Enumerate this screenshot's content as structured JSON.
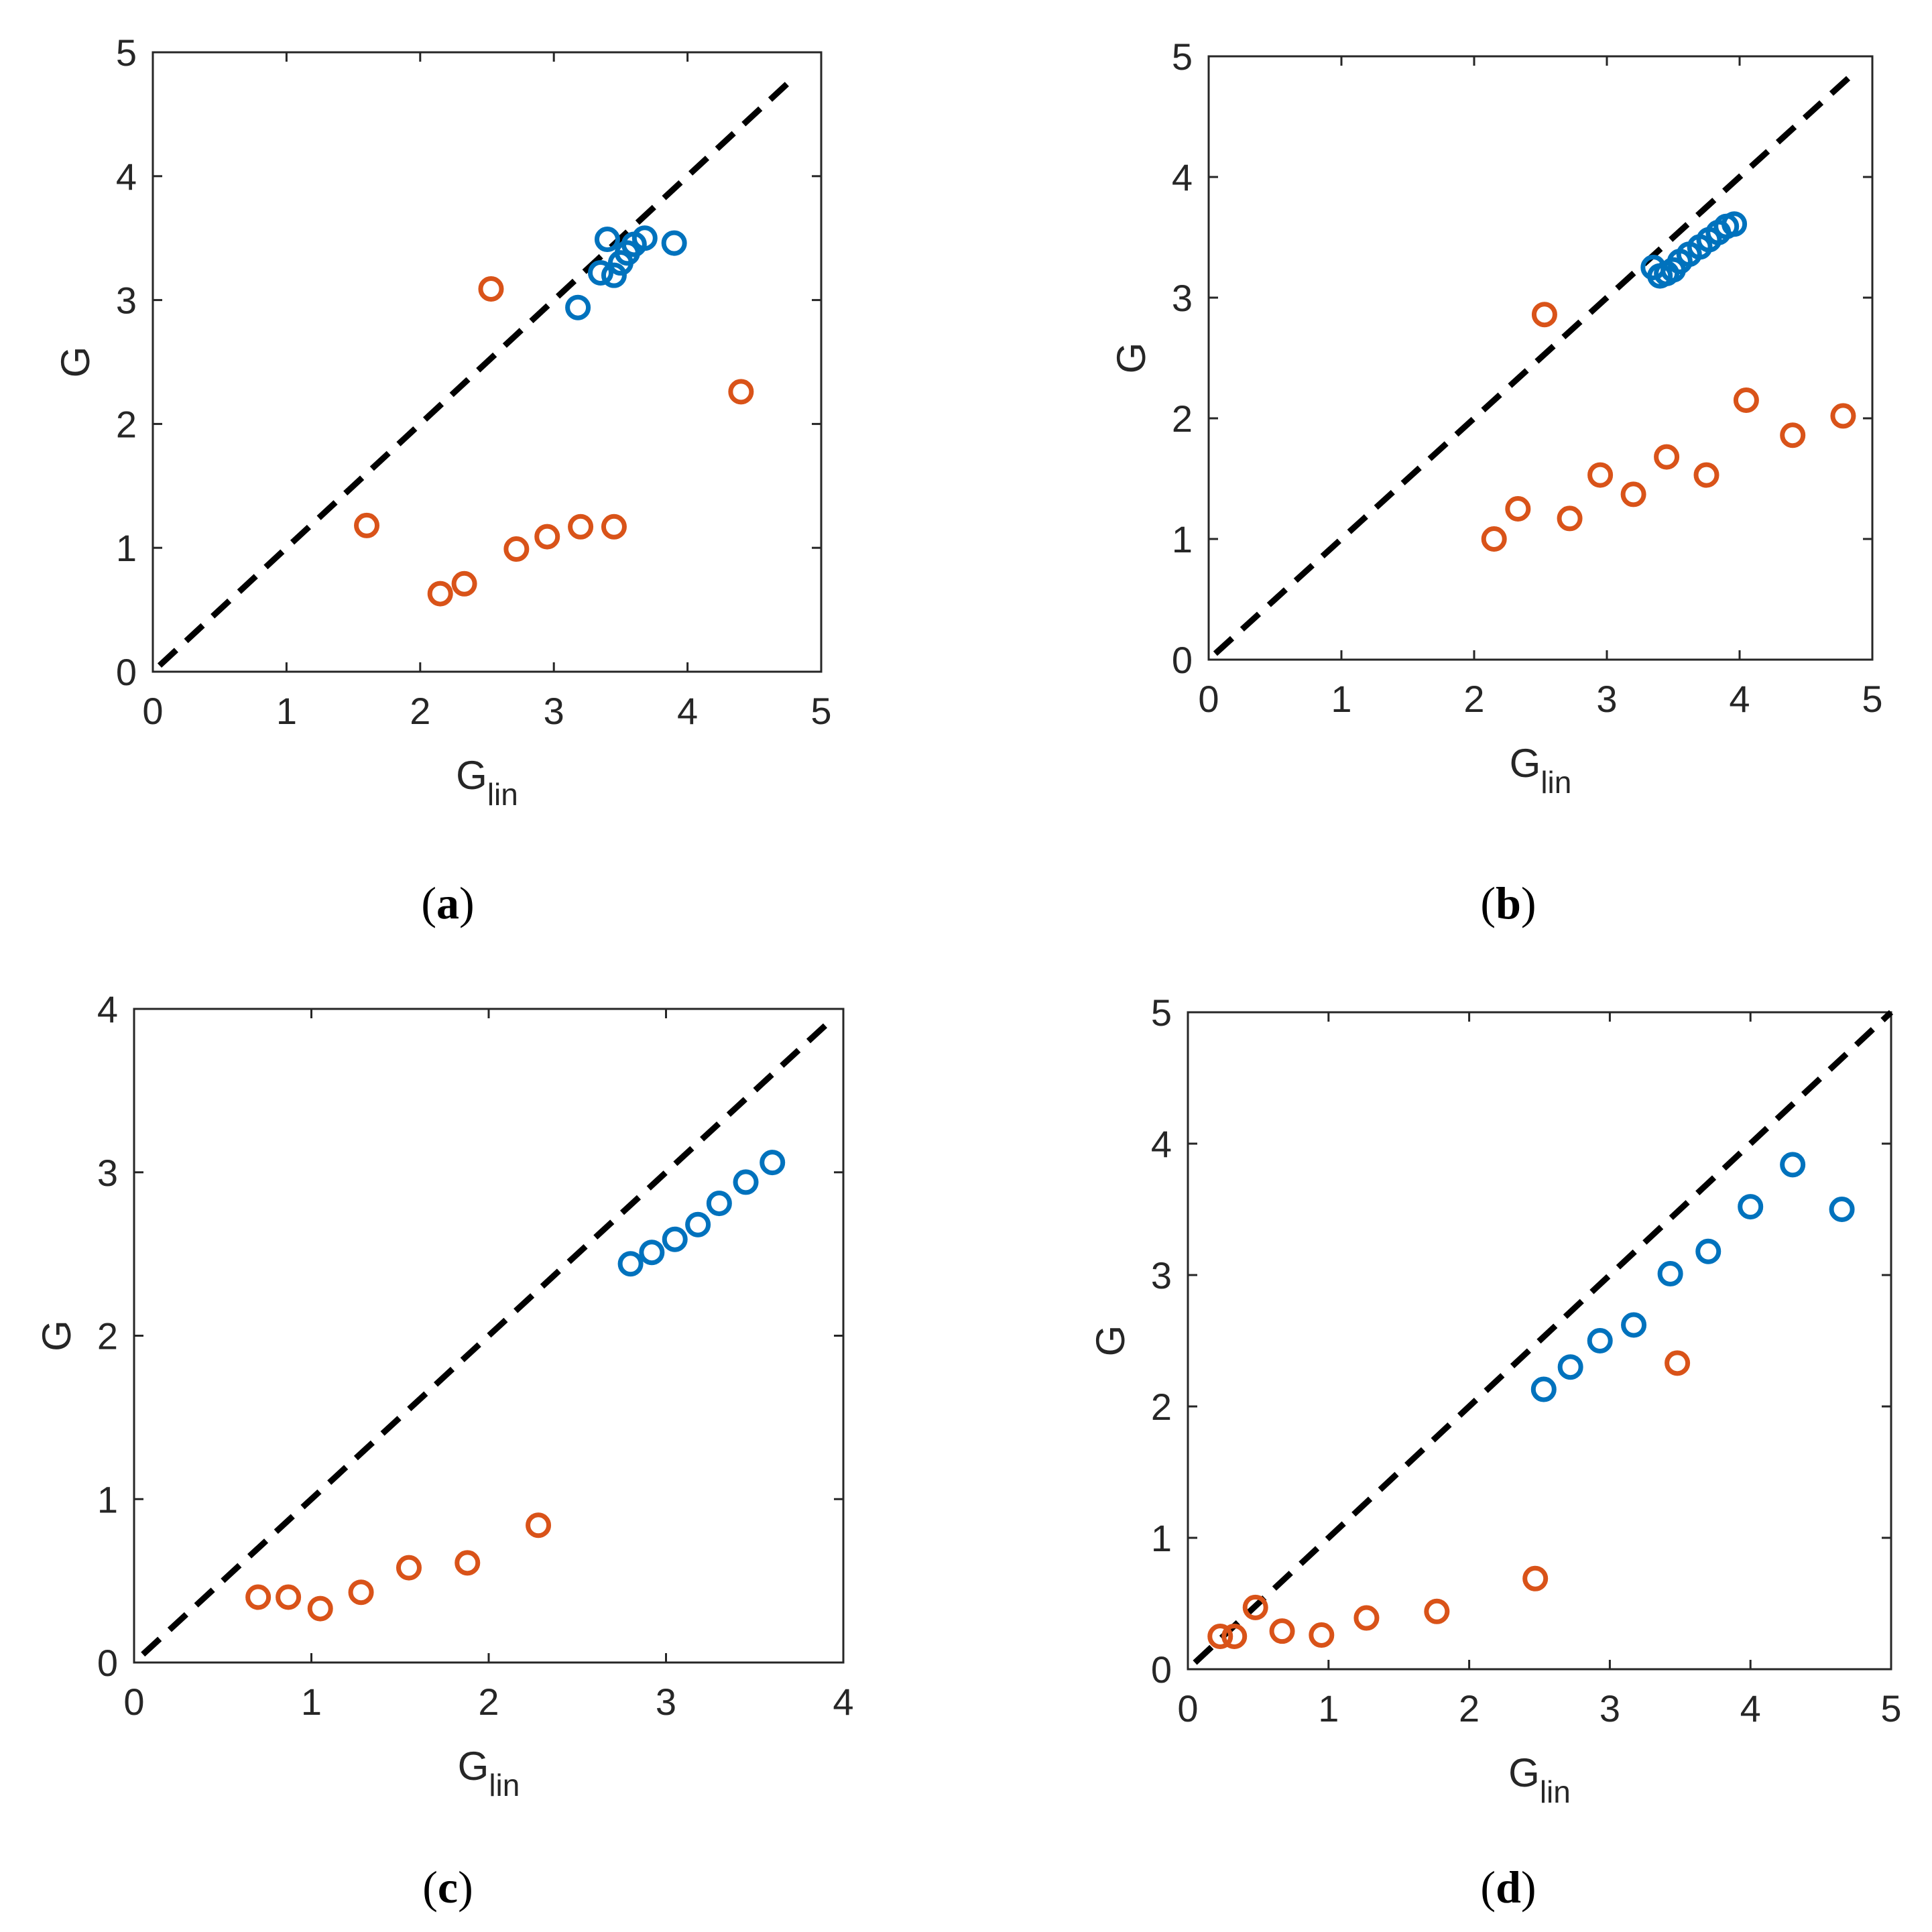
{
  "colors": {
    "blue": "#0072BD",
    "orange": "#D95319",
    "axis": "#262626",
    "reference_line": "#000000"
  },
  "chart_data": [
    {
      "type": "scatter",
      "panel": "a",
      "panel_letter": "a",
      "xlabel": "G",
      "xlabel_sub": "lin",
      "ylabel": "G",
      "xlim": [
        0,
        5
      ],
      "ylim": [
        0,
        5
      ],
      "xticks": [
        "0",
        "1",
        "2",
        "3",
        "4",
        "5"
      ],
      "yticks": [
        "0",
        "1",
        "2",
        "3",
        "4",
        "5"
      ],
      "reference_line": {
        "style": "dashed",
        "from": [
          0.05,
          0.05
        ],
        "to": [
          4.8,
          4.8
        ]
      },
      "series": [
        {
          "name": "blue",
          "x": [
            3.18,
            3.35,
            3.4,
            3.45,
            3.5,
            3.55,
            3.6,
            3.68,
            3.9
          ],
          "y": [
            2.94,
            3.22,
            3.49,
            3.2,
            3.3,
            3.38,
            3.45,
            3.5,
            3.46
          ]
        },
        {
          "name": "orange",
          "x": [
            1.6,
            2.15,
            2.33,
            2.53,
            2.72,
            2.95,
            3.2,
            3.45,
            4.4
          ],
          "y": [
            1.18,
            0.63,
            0.71,
            3.09,
            0.99,
            1.09,
            1.17,
            1.17,
            2.26
          ]
        }
      ]
    },
    {
      "type": "scatter",
      "panel": "b",
      "panel_letter": "b",
      "xlabel": "G",
      "xlabel_sub": "lin",
      "ylabel": "G",
      "xlim": [
        0,
        5
      ],
      "ylim": [
        0,
        5
      ],
      "xticks": [
        "0",
        "1",
        "2",
        "3",
        "4",
        "5"
      ],
      "yticks": [
        "0",
        "1",
        "2",
        "3",
        "4",
        "5"
      ],
      "reference_line": {
        "style": "dashed",
        "from": [
          0.05,
          0.05
        ],
        "to": [
          4.85,
          4.85
        ]
      },
      "series": [
        {
          "name": "blue",
          "x": [
            3.35,
            3.4,
            3.45,
            3.5,
            3.55,
            3.62,
            3.7,
            3.77,
            3.84,
            3.9,
            3.96
          ],
          "y": [
            3.25,
            3.18,
            3.2,
            3.23,
            3.3,
            3.36,
            3.42,
            3.48,
            3.54,
            3.59,
            3.61
          ]
        },
        {
          "name": "orange",
          "x": [
            2.15,
            2.33,
            2.53,
            2.72,
            2.95,
            3.2,
            3.45,
            3.75,
            4.05,
            4.4,
            4.78
          ],
          "y": [
            1.0,
            1.25,
            2.86,
            1.17,
            1.53,
            1.37,
            1.68,
            1.53,
            2.15,
            1.86,
            2.02
          ]
        }
      ]
    },
    {
      "type": "scatter",
      "panel": "c",
      "panel_letter": "c",
      "xlabel": "G",
      "xlabel_sub": "lin",
      "ylabel": "G",
      "xlim": [
        0,
        4
      ],
      "ylim": [
        0,
        4
      ],
      "xticks": [
        "0",
        "1",
        "2",
        "3",
        "4"
      ],
      "yticks": [
        "0",
        "1",
        "2",
        "3",
        "4"
      ],
      "reference_line": {
        "style": "dashed",
        "from": [
          0.05,
          0.05
        ],
        "to": [
          3.9,
          3.9
        ]
      },
      "series": [
        {
          "name": "blue",
          "x": [
            2.8,
            2.92,
            3.05,
            3.18,
            3.3,
            3.45,
            3.6
          ],
          "y": [
            2.44,
            2.51,
            2.59,
            2.68,
            2.81,
            2.94,
            3.06
          ]
        },
        {
          "name": "orange",
          "x": [
            0.7,
            0.87,
            1.05,
            1.28,
            1.55,
            1.88,
            2.28
          ],
          "y": [
            0.4,
            0.4,
            0.33,
            0.43,
            0.58,
            0.61,
            0.84
          ]
        }
      ]
    },
    {
      "type": "scatter",
      "panel": "d",
      "panel_letter": "d",
      "xlabel": "G",
      "xlabel_sub": "lin",
      "ylabel": "G",
      "xlim": [
        0,
        5
      ],
      "ylim": [
        0,
        5
      ],
      "xticks": [
        "0",
        "1",
        "2",
        "3",
        "4",
        "5"
      ],
      "yticks": [
        "0",
        "1",
        "2",
        "3",
        "4",
        "5"
      ],
      "reference_line": {
        "style": "dashed",
        "from": [
          0.05,
          0.05
        ],
        "to": [
          5.0,
          5.0
        ]
      },
      "series": [
        {
          "name": "blue",
          "x": [
            2.53,
            2.72,
            2.93,
            3.17,
            3.43,
            3.7,
            4.0,
            4.3,
            4.65
          ],
          "y": [
            2.13,
            2.3,
            2.5,
            2.62,
            3.01,
            3.18,
            3.52,
            3.84,
            3.5
          ]
        },
        {
          "name": "orange",
          "x": [
            0.23,
            0.33,
            0.48,
            0.67,
            0.95,
            1.27,
            1.77,
            2.47,
            3.48
          ],
          "y": [
            0.25,
            0.25,
            0.47,
            0.29,
            0.26,
            0.39,
            0.44,
            0.69,
            2.33
          ]
        }
      ]
    }
  ]
}
